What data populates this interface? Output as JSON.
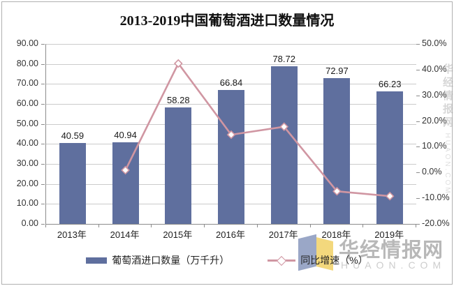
{
  "title": "2013-2019中国葡萄酒进口数量情况",
  "legend": {
    "bar_label": "葡萄酒进口数量（万千升）",
    "line_label": "同比增速（%）"
  },
  "watermark": {
    "site_name": "华经情报网",
    "site_url": "HUAON.COM"
  },
  "colors": {
    "bar": "#5f6f9e",
    "line": "#d096a2",
    "grid": "#cbcbcb",
    "axis": "#8c8c8c",
    "label_text": "#1a1a1a",
    "logo_blue": "#9aa7c7",
    "logo_yellow": "#f3d87d",
    "watermark_text": "#b8b8b8",
    "watermark_url": "#cdcdcd"
  },
  "chart_data": {
    "type": "bar",
    "title": "2013-2019中国葡萄酒进口数量情况",
    "categories": [
      "2013年",
      "2014年",
      "2015年",
      "2016年",
      "2017年",
      "2018年",
      "2019年"
    ],
    "series": [
      {
        "name": "葡萄酒进口数量（万千升）",
        "type": "bar",
        "y_axis": "left",
        "values": [
          40.59,
          40.94,
          58.28,
          66.84,
          78.72,
          72.97,
          66.23
        ],
        "data_labels": [
          "40.59",
          "40.94",
          "58.28",
          "66.84",
          "78.72",
          "72.97",
          "66.23"
        ]
      },
      {
        "name": "同比增速（%）",
        "type": "line",
        "y_axis": "right",
        "marker": "diamond",
        "values": [
          null,
          0.9,
          42.4,
          14.7,
          17.8,
          -7.3,
          -9.2
        ]
      }
    ],
    "left_axis": {
      "min": 0,
      "max": 90,
      "step": 10,
      "tick_labels": [
        "0.00",
        "10.00",
        "20.00",
        "30.00",
        "40.00",
        "50.00",
        "60.00",
        "70.00",
        "80.00",
        "90.00"
      ]
    },
    "right_axis": {
      "min": -20,
      "max": 50,
      "step": 10,
      "tick_labels": [
        "-20.0%",
        "-10.0%",
        "0.0%",
        "10.0%",
        "20.0%",
        "30.0%",
        "40.0%",
        "50.0%"
      ]
    },
    "grid": "horizontal",
    "legend_position": "bottom"
  }
}
